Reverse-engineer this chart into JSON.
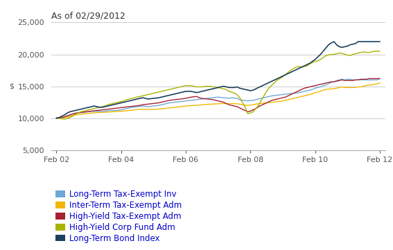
{
  "title": "As of 02/29/2012",
  "ylabel": "$",
  "ylim": [
    5000,
    25000
  ],
  "yticks": [
    5000,
    10000,
    15000,
    20000,
    25000
  ],
  "xtick_labels": [
    "Feb 02",
    "Feb 04",
    "Feb 06",
    "Feb 08",
    "Feb 10",
    "Feb 12"
  ],
  "xtick_positions": [
    0,
    24,
    48,
    72,
    96,
    120
  ],
  "x_total": 121,
  "series": [
    {
      "name": "Long-Term Tax-Exempt Inv",
      "color": "#6fa8d6",
      "linewidth": 1.0,
      "data_y": [
        10000,
        10050,
        10120,
        10200,
        10350,
        10500,
        10620,
        10700,
        10780,
        10850,
        10900,
        10950,
        11000,
        11050,
        11100,
        11080,
        11060,
        11050,
        11100,
        11150,
        11200,
        11180,
        11200,
        11250,
        11300,
        11400,
        11500,
        11600,
        11700,
        11750,
        11800,
        11850,
        11900,
        11850,
        11800,
        11850,
        11900,
        11950,
        12000,
        12100,
        12200,
        12300,
        12400,
        12450,
        12500,
        12550,
        12600,
        12650,
        12700,
        12750,
        12800,
        12850,
        12900,
        12950,
        13000,
        13050,
        13100,
        13150,
        13200,
        13250,
        13300,
        13250,
        13200,
        13150,
        13100,
        13200,
        13150,
        13100,
        12900,
        12800,
        12750,
        12700,
        12750,
        12800,
        12900,
        13000,
        13100,
        13200,
        13300,
        13400,
        13500,
        13550,
        13600,
        13650,
        13700,
        13750,
        13800,
        13850,
        13900,
        13950,
        14000,
        14100,
        14200,
        14300,
        14400,
        14500,
        14700,
        14800,
        14900,
        15100,
        15200,
        15400,
        15600,
        15700,
        15900,
        16000,
        16100,
        16000,
        16100,
        16100,
        16000,
        16000,
        16000,
        16000,
        16000,
        16000,
        16000,
        16000,
        16000,
        16000,
        16200
      ]
    },
    {
      "name": "Inter-Term Tax-Exempt Adm",
      "color": "#f0b800",
      "linewidth": 1.0,
      "data_y": [
        10000,
        10020,
        10060,
        10100,
        10200,
        10300,
        10400,
        10500,
        10550,
        10600,
        10650,
        10700,
        10750,
        10800,
        10850,
        10870,
        10880,
        10900,
        10920,
        10950,
        10980,
        11000,
        11050,
        11050,
        11080,
        11100,
        11150,
        11200,
        11250,
        11300,
        11350,
        11380,
        11400,
        11380,
        11360,
        11370,
        11380,
        11400,
        11420,
        11450,
        11500,
        11550,
        11600,
        11650,
        11700,
        11750,
        11800,
        11850,
        11900,
        11930,
        11960,
        11990,
        12000,
        12050,
        12100,
        12130,
        12160,
        12180,
        12200,
        12230,
        12250,
        12280,
        12300,
        12280,
        12250,
        12300,
        12280,
        12250,
        12200,
        12100,
        12050,
        12000,
        12050,
        12100,
        12200,
        12250,
        12300,
        12350,
        12400,
        12450,
        12500,
        12550,
        12600,
        12650,
        12700,
        12800,
        12900,
        13000,
        13100,
        13200,
        13300,
        13400,
        13500,
        13600,
        13700,
        13800,
        14000,
        14100,
        14200,
        14400,
        14500,
        14550,
        14600,
        14600,
        14700,
        14800,
        14900,
        14800,
        14800,
        14800,
        14800,
        14800,
        14900,
        14900,
        15000,
        15100,
        15200,
        15200,
        15300,
        15400,
        15500
      ]
    },
    {
      "name": "High-Yield Tax-Exempt Adm",
      "color": "#a52030",
      "linewidth": 1.0,
      "data_y": [
        10000,
        10050,
        10100,
        10200,
        10350,
        10500,
        10650,
        10780,
        10850,
        10900,
        10950,
        11000,
        11050,
        11100,
        11150,
        11200,
        11250,
        11300,
        11350,
        11400,
        11450,
        11500,
        11550,
        11600,
        11650,
        11700,
        11750,
        11800,
        11850,
        11900,
        11950,
        12000,
        12100,
        12150,
        12200,
        12250,
        12300,
        12350,
        12400,
        12500,
        12600,
        12700,
        12800,
        12850,
        12900,
        12950,
        13000,
        13050,
        13100,
        13200,
        13300,
        13350,
        13400,
        13200,
        13100,
        13050,
        13000,
        12950,
        12900,
        12800,
        12700,
        12600,
        12500,
        12300,
        12100,
        12000,
        11900,
        11800,
        11600,
        11400,
        11200,
        11000,
        11100,
        11300,
        11500,
        11800,
        12000,
        12200,
        12400,
        12600,
        12800,
        12900,
        13000,
        13100,
        13200,
        13300,
        13500,
        13700,
        13900,
        14100,
        14300,
        14500,
        14700,
        14800,
        14900,
        15000,
        15100,
        15200,
        15300,
        15400,
        15500,
        15600,
        15700,
        15700,
        15800,
        15900,
        16000,
        15900,
        15900,
        15900,
        15900,
        16000,
        16000,
        16100,
        16100,
        16100,
        16200,
        16200,
        16200,
        16200,
        16200
      ]
    },
    {
      "name": "High-Yield Corp Fund Adm",
      "color": "#a8b400",
      "linewidth": 1.0,
      "data_y": [
        10000,
        9950,
        9900,
        9850,
        9950,
        10100,
        10300,
        10600,
        10800,
        11000,
        11100,
        11200,
        11300,
        11400,
        11500,
        11600,
        11700,
        11800,
        11900,
        12100,
        12200,
        12300,
        12400,
        12500,
        12600,
        12700,
        12900,
        13000,
        13100,
        13200,
        13300,
        13400,
        13500,
        13600,
        13700,
        13800,
        13900,
        14000,
        14100,
        14200,
        14300,
        14400,
        14500,
        14600,
        14700,
        14800,
        14900,
        15000,
        15100,
        15100,
        15100,
        15000,
        14900,
        14900,
        14900,
        15000,
        15000,
        15000,
        14900,
        14900,
        14800,
        14700,
        14600,
        14500,
        14200,
        14100,
        13900,
        13700,
        13200,
        12500,
        11800,
        10700,
        10800,
        11000,
        11500,
        12000,
        12800,
        13500,
        14200,
        14800,
        15200,
        15600,
        16000,
        16200,
        16500,
        16800,
        17200,
        17500,
        17800,
        18000,
        18100,
        18000,
        18100,
        18200,
        18500,
        18700,
        18900,
        19000,
        19200,
        19500,
        19800,
        19900,
        20000,
        20000,
        20100,
        20200,
        20200,
        20000,
        19900,
        19800,
        20000,
        20100,
        20200,
        20300,
        20400,
        20300,
        20300,
        20400,
        20500,
        20500,
        20500
      ]
    },
    {
      "name": "Long-Term Bond Index",
      "color": "#1c3f5e",
      "linewidth": 1.2,
      "data_y": [
        10000,
        10100,
        10300,
        10500,
        10800,
        11000,
        11100,
        11200,
        11300,
        11400,
        11500,
        11600,
        11700,
        11800,
        11900,
        11800,
        11700,
        11700,
        11800,
        11900,
        12000,
        12100,
        12200,
        12300,
        12400,
        12500,
        12600,
        12700,
        12800,
        12900,
        13000,
        13100,
        13200,
        13100,
        13000,
        13050,
        13100,
        13150,
        13200,
        13300,
        13400,
        13500,
        13600,
        13700,
        13800,
        13900,
        14000,
        14100,
        14200,
        14200,
        14200,
        14100,
        14000,
        14100,
        14200,
        14300,
        14400,
        14500,
        14600,
        14700,
        14800,
        14900,
        15000,
        14900,
        14800,
        14800,
        14800,
        14900,
        14700,
        14600,
        14500,
        14400,
        14300,
        14400,
        14600,
        14800,
        15000,
        15200,
        15400,
        15600,
        15800,
        16000,
        16200,
        16400,
        16600,
        16800,
        17000,
        17200,
        17400,
        17600,
        17800,
        18000,
        18200,
        18400,
        18600,
        18900,
        19200,
        19600,
        20000,
        20500,
        21000,
        21500,
        21800,
        22000,
        21500,
        21200,
        21100,
        21200,
        21300,
        21500,
        21600,
        21700,
        22000,
        22000,
        22000,
        22000,
        22000,
        22000,
        22000,
        22000,
        22000
      ]
    }
  ],
  "legend_colors": [
    "#6fa8d6",
    "#f0b800",
    "#a52030",
    "#a8b400",
    "#1c3f5e"
  ],
  "legend_labels": [
    "Long-Term Tax-Exempt Inv",
    "Inter-Term Tax-Exempt Adm",
    "High-Yield Tax-Exempt Adm",
    "High-Yield Corp Fund Adm",
    "Long-Term Bond Index"
  ],
  "bg_color": "#ffffff",
  "grid_color": "#cccccc",
  "text_color": "#0000cc",
  "title_color": "#333333",
  "axis_color": "#555555",
  "title_fontsize": 9,
  "axis_fontsize": 8,
  "legend_fontsize": 8.5
}
